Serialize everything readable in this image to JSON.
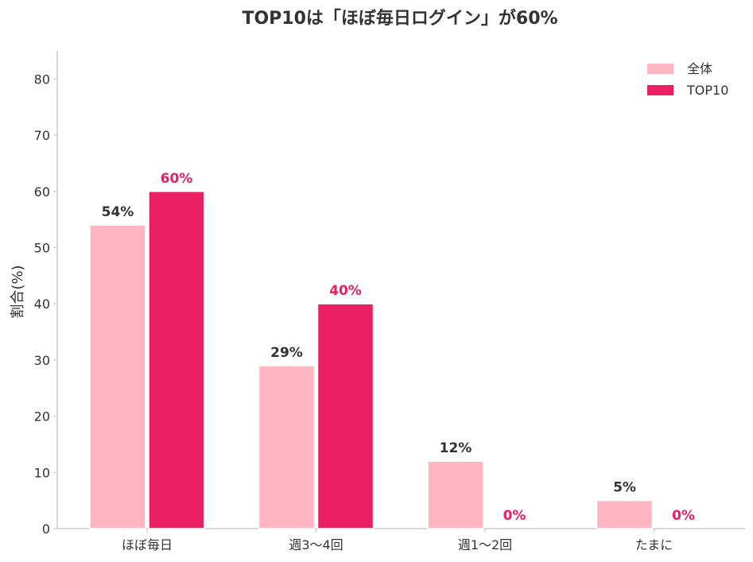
{
  "chart_data": {
    "type": "bar",
    "title": "TOP10は「ほぼ毎日ログイン」が60%",
    "xlabel": "",
    "ylabel": "割合(%)",
    "categories": [
      "ほぼ毎日",
      "週3〜4回",
      "週1〜2回",
      "たまに"
    ],
    "series": [
      {
        "name": "全体",
        "values": [
          54,
          29,
          12,
          5
        ],
        "labels": [
          "54%",
          "29%",
          "12%",
          "5%"
        ],
        "color": "#FFB6C1",
        "label_color": "#333333"
      },
      {
        "name": "TOP10",
        "values": [
          60,
          40,
          0,
          0
        ],
        "labels": [
          "60%",
          "40%",
          "0%",
          "0%"
        ],
        "color": "#E91E63",
        "label_color": "#E91E63"
      }
    ],
    "ylim": [
      0,
      85
    ],
    "yticks": [
      0,
      10,
      20,
      30,
      40,
      50,
      60,
      70,
      80
    ],
    "ytick_labels": [
      "0",
      "10",
      "20",
      "30",
      "40",
      "50",
      "60",
      "70",
      "80"
    ],
    "grid": false,
    "legend_position": "top-right",
    "axis_color": "#cccccc",
    "text_color": "#333333"
  }
}
